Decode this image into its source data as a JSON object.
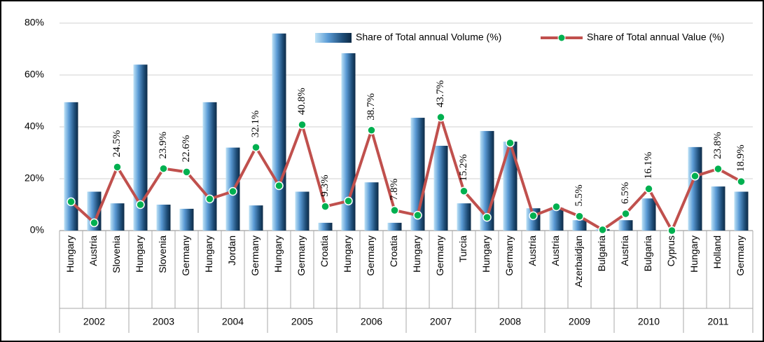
{
  "chart_data": {
    "type": "bar-line",
    "categories": [
      "Hungary",
      "Austria",
      "Slovenia",
      "Hungary",
      "Slovenia",
      "Germany",
      "Hungary",
      "Jordan",
      "Germany",
      "Hungary",
      "Germany",
      "Croatia",
      "Hungary",
      "Germany",
      "Croatia",
      "Hungary",
      "Germany",
      "Turcia",
      "Hungary",
      "Germany",
      "Austria",
      "Austria",
      "Azerbaidjan",
      "Bulgaria",
      "Austria",
      "Bulgaria",
      "Cyprus",
      "Hungary",
      "Holland",
      "Germany"
    ],
    "groups": [
      "2002",
      "2003",
      "2004",
      "2005",
      "2006",
      "2007",
      "2008",
      "2009",
      "2010",
      "2011"
    ],
    "series": [
      {
        "name": "Share of Total annual Volume (%)",
        "type": "bar",
        "color": "#1f4e79",
        "values": [
          49.5,
          15,
          10.5,
          64,
          10,
          8.4,
          49.5,
          32,
          9.7,
          76,
          15,
          3,
          68.4,
          18.6,
          3,
          43.5,
          32.7,
          10.5,
          38.4,
          34.3,
          8.6,
          8.8,
          4,
          0.5,
          4,
          12.4,
          0,
          32.2,
          17,
          15
        ]
      },
      {
        "name": "Share of Total annual Value (%)",
        "type": "line",
        "color": "#c0504d",
        "marker_color": "#00b050",
        "values": [
          11.1,
          3,
          24.5,
          10,
          23.9,
          22.6,
          12.2,
          15.1,
          32.1,
          17.3,
          40.8,
          9.3,
          11.4,
          38.7,
          7.8,
          5.9,
          43.7,
          15.2,
          5.1,
          33.8,
          5.7,
          9.2,
          5.5,
          0.3,
          6.5,
          16.1,
          0,
          21,
          23.8,
          18.9
        ],
        "value_labels": [
          null,
          null,
          "24.5%",
          null,
          "23.9%",
          "22.6%",
          null,
          null,
          "32.1%",
          null,
          "40.8%",
          "9.3%",
          null,
          "38.7%",
          "7.8%",
          null,
          "43.7%",
          "15.2%",
          null,
          null,
          null,
          null,
          "5.5%",
          null,
          "6.5%",
          "16.1%",
          null,
          null,
          "23.8%",
          "18.9%"
        ]
      }
    ],
    "ylim": [
      0,
      80
    ],
    "yticks": [
      {
        "value": 0,
        "label": "0%"
      },
      {
        "value": 20,
        "label": "20%"
      },
      {
        "value": 40,
        "label": "40%"
      },
      {
        "value": 60,
        "label": "60%"
      },
      {
        "value": 80,
        "label": "80%"
      }
    ],
    "grid": true,
    "legend": "top-right"
  }
}
